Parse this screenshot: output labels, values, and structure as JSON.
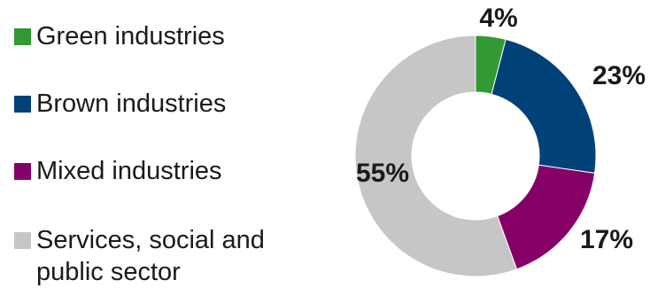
{
  "chart_data": {
    "type": "pie",
    "donut": true,
    "legend_position": "left",
    "slices": [
      {
        "label": "Green industries",
        "value": 4,
        "display": "4%",
        "color": "#339933"
      },
      {
        "label": "Brown industries",
        "value": 23,
        "display": "23%",
        "color": "#004178"
      },
      {
        "label": "Mixed industries",
        "value": 17,
        "display": "17%",
        "color": "#850066"
      },
      {
        "label": "Services, social and\npublic sector",
        "value": 55,
        "display": "55%",
        "color": "#c6c6c6"
      }
    ]
  }
}
